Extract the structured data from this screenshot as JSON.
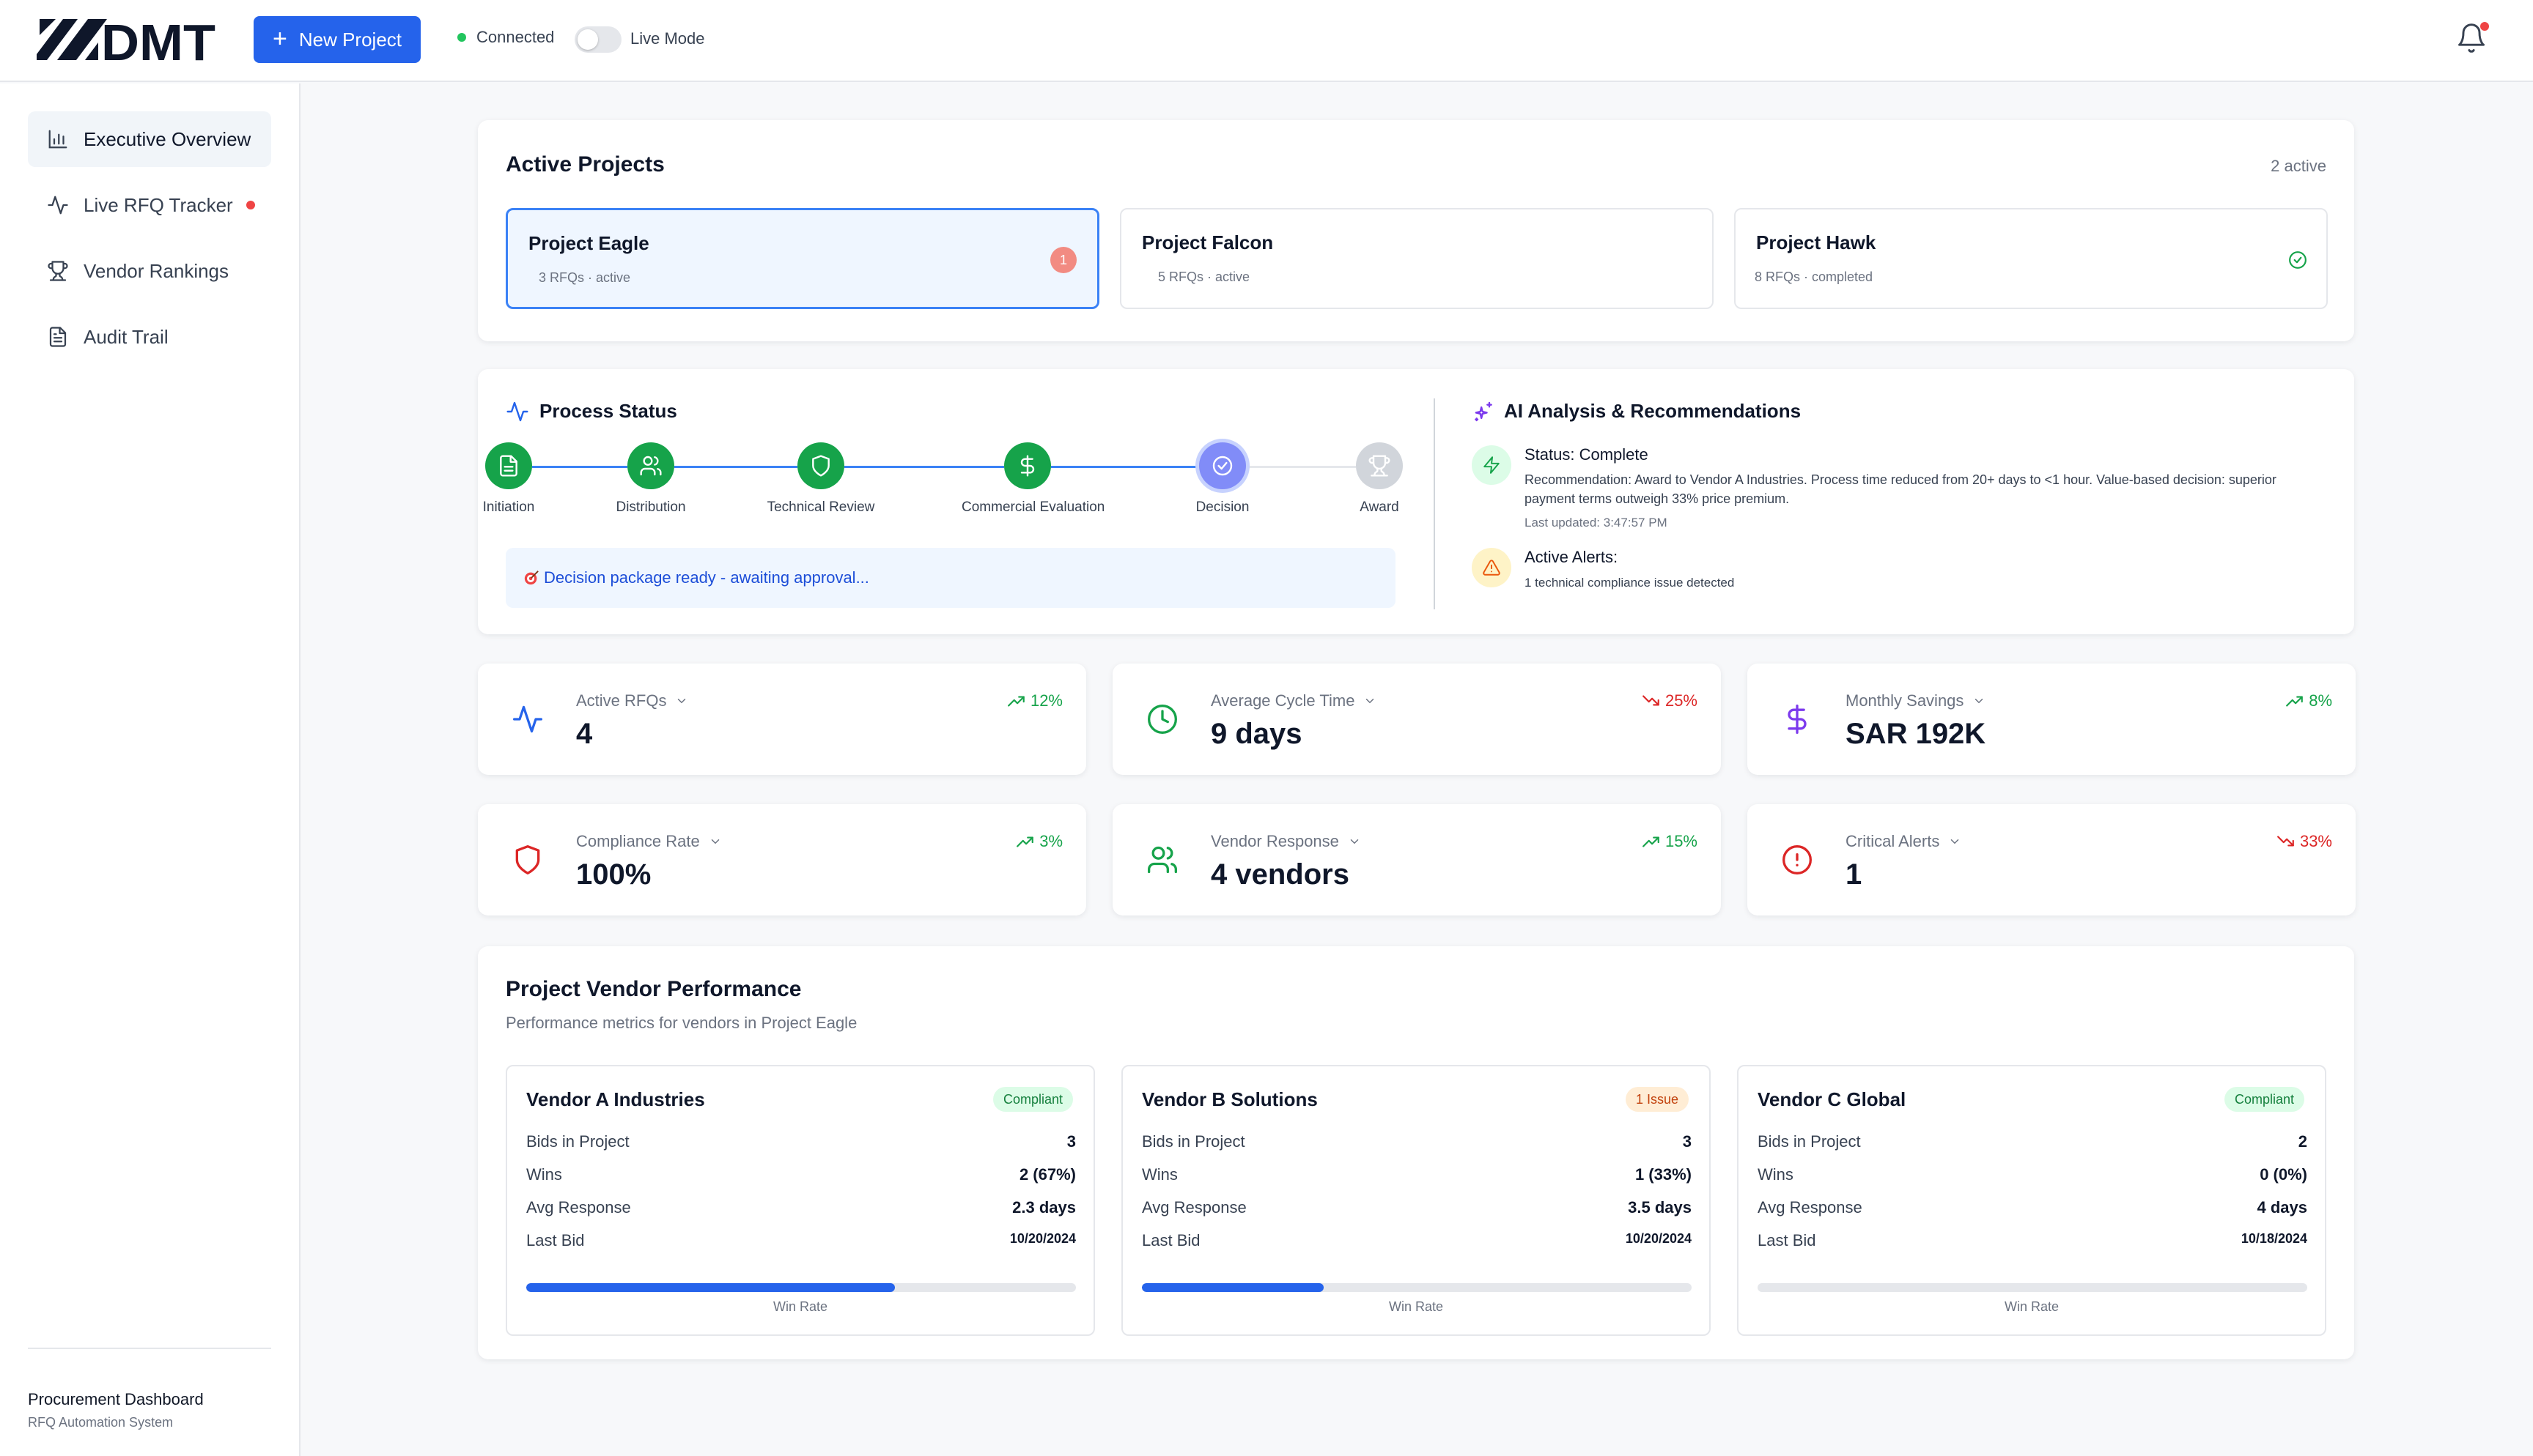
{
  "colors": {
    "brand_blue": "#2563eb",
    "green": "#16a34a",
    "red": "#dc2626",
    "purple": "#7c3aed"
  },
  "topbar": {
    "logo_text": "DMT",
    "new_project_label": "New Project",
    "connection_status": "Connected",
    "live_mode_label": "Live Mode",
    "live_mode_on": false
  },
  "sidebar": {
    "items": [
      {
        "label": "Executive Overview",
        "icon": "bar-chart-icon",
        "active": true
      },
      {
        "label": "Live RFQ Tracker",
        "icon": "activity-icon",
        "alert_dot": true
      },
      {
        "label": "Vendor Rankings",
        "icon": "trophy-icon"
      },
      {
        "label": "Audit Trail",
        "icon": "file-text-icon"
      }
    ],
    "footer_title": "Procurement Dashboard",
    "footer_subtitle": "RFQ Automation System"
  },
  "active_projects": {
    "title": "Active Projects",
    "count_label": "2 active",
    "projects": [
      {
        "name": "Project Eagle",
        "meta": "3 RFQs · active",
        "badge": "1",
        "selected": true
      },
      {
        "name": "Project Falcon",
        "meta": "5 RFQs · active"
      },
      {
        "name": "Project Hawk",
        "meta": "8 RFQs · completed",
        "status_icon": "check-circle-icon"
      }
    ]
  },
  "process": {
    "title": "Process Status",
    "steps": [
      {
        "label": "Initiation",
        "state": "done",
        "icon": "file-icon"
      },
      {
        "label": "Distribution",
        "state": "done",
        "icon": "users-icon"
      },
      {
        "label": "Technical Review",
        "state": "done",
        "icon": "shield-icon"
      },
      {
        "label": "Commercial Evaluation",
        "state": "done",
        "icon": "dollar-icon"
      },
      {
        "label": "Decision",
        "state": "current",
        "icon": "check-circle-icon"
      },
      {
        "label": "Award",
        "state": "pending",
        "icon": "trophy-icon"
      }
    ],
    "status_message": "Decision package ready - awaiting approval..."
  },
  "ai": {
    "title": "AI Analysis & Recommendations",
    "status_title": "Status: Complete",
    "recommendation": "Recommendation: Award to Vendor A Industries. Process time reduced from 20+ days to <1 hour. Value-based decision: superior payment terms outweigh 33% price premium.",
    "last_updated": "Last updated: 3:47:57 PM",
    "alerts_title": "Active Alerts:",
    "alerts_text": "1 technical compliance issue detected"
  },
  "metrics": [
    {
      "label": "Active RFQs",
      "value": "4",
      "trend": "12%",
      "direction": "up",
      "icon": "activity-icon"
    },
    {
      "label": "Average Cycle Time",
      "value": "9 days",
      "trend": "25%",
      "direction": "down",
      "icon": "clock-icon"
    },
    {
      "label": "Monthly Savings",
      "value": "SAR 192K",
      "trend": "8%",
      "direction": "up",
      "icon": "dollar-icon"
    },
    {
      "label": "Compliance Rate",
      "value": "100%",
      "trend": "3%",
      "direction": "up",
      "icon": "shield-icon"
    },
    {
      "label": "Vendor Response",
      "value": "4 vendors",
      "trend": "15%",
      "direction": "up",
      "icon": "users-icon"
    },
    {
      "label": "Critical Alerts",
      "value": "1",
      "trend": "33%",
      "direction": "down",
      "icon": "alert-circle-icon"
    }
  ],
  "vendor_performance": {
    "title": "Project Vendor Performance",
    "subtitle": "Performance metrics for vendors in Project Eagle",
    "row_labels": {
      "bids": "Bids in Project",
      "wins": "Wins",
      "avg_response": "Avg Response",
      "last_bid": "Last Bid"
    },
    "win_rate_label": "Win Rate",
    "vendors": [
      {
        "name": "Vendor A Industries",
        "badge": "Compliant",
        "badge_type": "ok",
        "bids": "3",
        "wins": "2 (67%)",
        "avg_response": "2.3 days",
        "last_bid": "10/20/2024",
        "win_rate": 0.67
      },
      {
        "name": "Vendor B Solutions",
        "badge": "1 Issue",
        "badge_type": "issue",
        "bids": "3",
        "wins": "1 (33%)",
        "avg_response": "3.5 days",
        "last_bid": "10/20/2024",
        "win_rate": 0.33
      },
      {
        "name": "Vendor C Global",
        "badge": "Compliant",
        "badge_type": "ok",
        "bids": "2",
        "wins": "0 (0%)",
        "avg_response": "4 days",
        "last_bid": "10/18/2024",
        "win_rate": 0
      }
    ]
  }
}
